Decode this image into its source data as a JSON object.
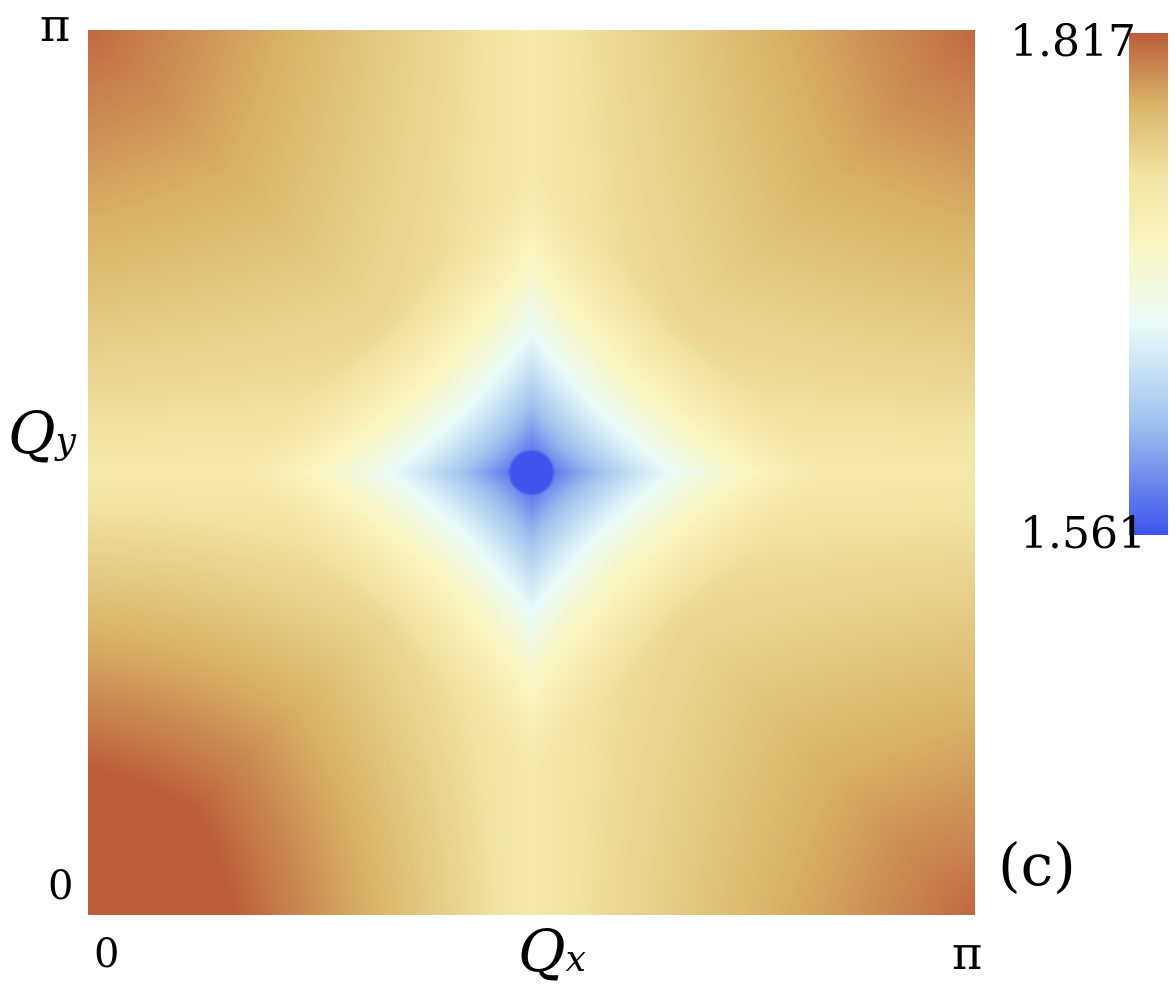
{
  "chart_data": {
    "type": "heatmap",
    "xlabel": "Q",
    "xlabel_sub": "x",
    "ylabel": "Q",
    "ylabel_sub": "y",
    "x_range": [
      0,
      3.14159
    ],
    "y_range": [
      0,
      3.14159
    ],
    "xticks": [
      "0",
      "π"
    ],
    "yticks": [
      "0",
      "π"
    ],
    "colorbar": {
      "min": 1.561,
      "max": 1.817,
      "min_label": "1.561",
      "max_label": "1.817"
    },
    "colormap": [
      {
        "v": 0.0,
        "color": "#3d55ec"
      },
      {
        "v": 0.22,
        "color": "#9fc1ee"
      },
      {
        "v": 0.42,
        "color": "#eafcfa"
      },
      {
        "v": 0.58,
        "color": "#fbf6c2"
      },
      {
        "v": 0.72,
        "color": "#f1e4a2"
      },
      {
        "v": 0.86,
        "color": "#d9b468"
      },
      {
        "v": 1.0,
        "color": "#bc5e3a"
      }
    ],
    "grid": false,
    "annotation": "(c)",
    "features": {
      "minimum": {
        "qx": "π/2",
        "qy": "π/2",
        "value": 1.561
      },
      "maximum": {
        "qx": 0,
        "qy": 0,
        "value": 1.817
      }
    }
  }
}
